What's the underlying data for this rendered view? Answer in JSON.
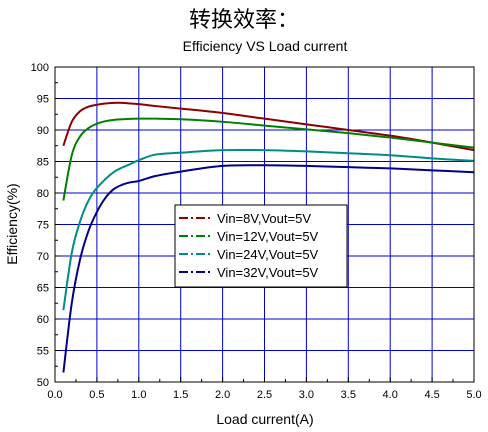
{
  "page": {
    "heading": "转换效率："
  },
  "chart_data": {
    "type": "line",
    "title": "Efficiency VS Load current",
    "xlabel": "Load current(A)",
    "ylabel": "Efficiency(%)",
    "xlim": [
      0.0,
      5.0
    ],
    "ylim": [
      50,
      100
    ],
    "xticks": [
      0.0,
      0.5,
      1.0,
      1.5,
      2.0,
      2.5,
      3.0,
      3.5,
      4.0,
      4.5,
      5.0
    ],
    "xtick_labels": [
      "0.0",
      "0.5",
      "1.0",
      "1.5",
      "2.0",
      "2.5",
      "3.0",
      "3.5",
      "4.0",
      "4.5",
      "5.0"
    ],
    "yticks": [
      50,
      55,
      60,
      65,
      70,
      75,
      80,
      85,
      90,
      95,
      100
    ],
    "ytick_labels": [
      "50",
      "55",
      "60",
      "65",
      "70",
      "75",
      "80",
      "85",
      "90",
      "95",
      "100"
    ],
    "grid": true,
    "legend_position": "center-left",
    "series": [
      {
        "name": "Vin=8V,Vout=5V",
        "color": "#8b0000",
        "x": [
          0.1,
          0.2,
          0.3,
          0.4,
          0.5,
          0.6,
          0.7,
          0.8,
          1.0,
          1.2,
          1.5,
          2.0,
          2.5,
          3.0,
          3.5,
          4.0,
          4.5,
          5.0
        ],
        "y": [
          87.5,
          91.3,
          93.0,
          93.7,
          94.0,
          94.2,
          94.3,
          94.3,
          94.1,
          93.8,
          93.4,
          92.7,
          91.8,
          90.9,
          90.0,
          89.1,
          88.0,
          86.8
        ]
      },
      {
        "name": "Vin=12V,Vout=5V",
        "color": "#008000",
        "x": [
          0.1,
          0.2,
          0.3,
          0.4,
          0.5,
          0.6,
          0.7,
          0.8,
          1.0,
          1.2,
          1.5,
          2.0,
          2.5,
          3.0,
          3.5,
          4.0,
          4.5,
          5.0
        ],
        "y": [
          78.8,
          86.0,
          89.0,
          90.3,
          91.0,
          91.4,
          91.6,
          91.7,
          91.8,
          91.8,
          91.7,
          91.3,
          90.7,
          90.1,
          89.5,
          88.8,
          88.0,
          87.2
        ]
      },
      {
        "name": "Vin=24V,Vout=5V",
        "color": "#008b8b",
        "x": [
          0.1,
          0.2,
          0.3,
          0.4,
          0.5,
          0.7,
          0.9,
          1.0,
          1.2,
          1.5,
          2.0,
          2.5,
          3.0,
          3.5,
          4.0,
          4.5,
          5.0
        ],
        "y": [
          61.4,
          70.5,
          75.5,
          78.8,
          80.8,
          83.3,
          84.6,
          85.2,
          86.1,
          86.4,
          86.8,
          86.8,
          86.6,
          86.3,
          86.0,
          85.5,
          85.1
        ]
      },
      {
        "name": "Vin=32V,Vout=5V",
        "color": "#00008b",
        "x": [
          0.1,
          0.2,
          0.3,
          0.4,
          0.5,
          0.6,
          0.7,
          0.8,
          0.9,
          1.0,
          1.2,
          1.5,
          2.0,
          2.5,
          3.0,
          3.5,
          4.0,
          4.5,
          5.0
        ],
        "y": [
          51.5,
          62.5,
          69.5,
          74.0,
          77.0,
          79.2,
          80.6,
          81.3,
          81.7,
          81.9,
          82.7,
          83.4,
          84.3,
          84.4,
          84.3,
          84.1,
          83.9,
          83.6,
          83.3
        ]
      }
    ]
  }
}
